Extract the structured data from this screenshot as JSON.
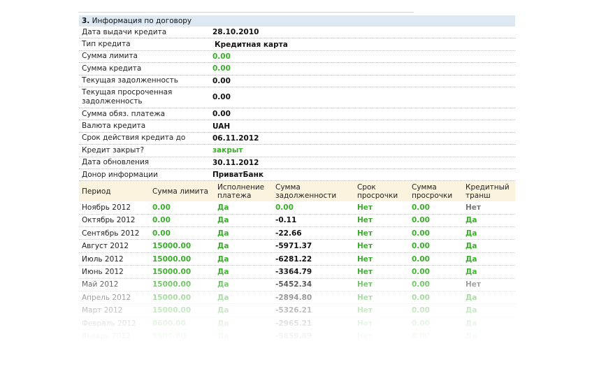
{
  "section": {
    "number": "3.",
    "title": "Информация по договору"
  },
  "info": [
    {
      "label": "Дата выдачи кредита",
      "value": "28.10.2010",
      "style": "dark"
    },
    {
      "label": "Тип кредита",
      "value": "Кредитная карта",
      "style": "dark-indent"
    },
    {
      "label": "Сумма лимита",
      "value": "0.00",
      "style": "green"
    },
    {
      "label": "Сумма кредита",
      "value": "0.00",
      "style": "green"
    },
    {
      "label": "Текущая задолженность",
      "value": "0.00",
      "style": "dark"
    },
    {
      "label": "Текущая просроченная задолженность",
      "value": "0.00",
      "style": "dark",
      "tall": true
    },
    {
      "label": "Сумма обяз. платежа",
      "value": "0.00",
      "style": "dark"
    },
    {
      "label": "Валюта кредита",
      "value": "UAH",
      "style": "dark"
    },
    {
      "label": "Срок действия кредита до",
      "value": "06.11.2012",
      "style": "dark"
    },
    {
      "label": "Кредит закрыт?",
      "value": "закрыт",
      "style": "green"
    },
    {
      "label": "Дата обновления",
      "value": "30.11.2012",
      "style": "dark"
    },
    {
      "label": "Донор информации",
      "value": "ПриватБанк",
      "style": "dark"
    }
  ],
  "period_headers": {
    "period": "Период",
    "limit": "Сумма лимита",
    "payment": "Исполнение платежа",
    "debt": "Сумма задолженности",
    "overdue_term": "Срок просрочки",
    "overdue_sum": "Сумма просрочки",
    "tranche": "Кредитный транш"
  },
  "periods": [
    {
      "period": "Ноябрь 2012",
      "limit": "0.00",
      "payment": "Да",
      "debt": "0.00",
      "debt_green": true,
      "term": "Нет",
      "sum": "0.00",
      "tranche": "Нет",
      "tranche_green": false
    },
    {
      "period": "Октябрь 2012",
      "limit": "0.00",
      "payment": "Да",
      "debt": "-0.11",
      "debt_green": false,
      "term": "Нет",
      "sum": "0.00",
      "tranche": "Да",
      "tranche_green": true
    },
    {
      "period": "Сентябрь 2012",
      "limit": "0.00",
      "payment": "Да",
      "debt": "-22.66",
      "debt_green": false,
      "term": "Нет",
      "sum": "0.00",
      "tranche": "Да",
      "tranche_green": true
    },
    {
      "period": "Август 2012",
      "limit": "15000.00",
      "payment": "Да",
      "debt": "-5971.37",
      "debt_green": false,
      "term": "Нет",
      "sum": "0.00",
      "tranche": "Да",
      "tranche_green": true
    },
    {
      "period": "Июль 2012",
      "limit": "15000.00",
      "payment": "Да",
      "debt": "-6281.22",
      "debt_green": false,
      "term": "Нет",
      "sum": "0.00",
      "tranche": "Да",
      "tranche_green": true
    },
    {
      "period": "Июнь 2012",
      "limit": "15000.00",
      "payment": "Да",
      "debt": "-3364.79",
      "debt_green": false,
      "term": "Нет",
      "sum": "0.00",
      "tranche": "Да",
      "tranche_green": true
    },
    {
      "period": "Май 2012",
      "limit": "15000.00",
      "payment": "Да",
      "debt": "-5452.34",
      "debt_green": false,
      "term": "Нет",
      "sum": "0.00",
      "tranche": "Нет",
      "tranche_green": false
    },
    {
      "period": "Апрель 2012",
      "limit": "15000.00",
      "payment": "Да",
      "debt": "-2894.80",
      "debt_green": false,
      "term": "Нет",
      "sum": "0.00",
      "tranche": "Да",
      "tranche_green": true
    },
    {
      "period": "Март 2012",
      "limit": "15000.00",
      "payment": "Да",
      "debt": "-5326.21",
      "debt_green": false,
      "term": "Нет",
      "sum": "0.00",
      "tranche": "Да",
      "tranche_green": true
    },
    {
      "period": "Февраль 2012",
      "limit": "8600.00",
      "payment": "Да",
      "debt": "-2965.21",
      "debt_green": false,
      "term": "Нет",
      "sum": "0.00",
      "tranche": "Да",
      "tranche_green": true
    },
    {
      "period": "Январь 2012",
      "limit": "8600.00",
      "payment": "Да",
      "debt": "-5859.89",
      "debt_green": false,
      "term": "Нет",
      "sum": "0.00",
      "tranche": "Да",
      "tranche_green": true
    }
  ],
  "colors": {
    "green": "#3aad2a",
    "header_blue": "#dce9f3",
    "header_cream": "#fbf3de"
  }
}
